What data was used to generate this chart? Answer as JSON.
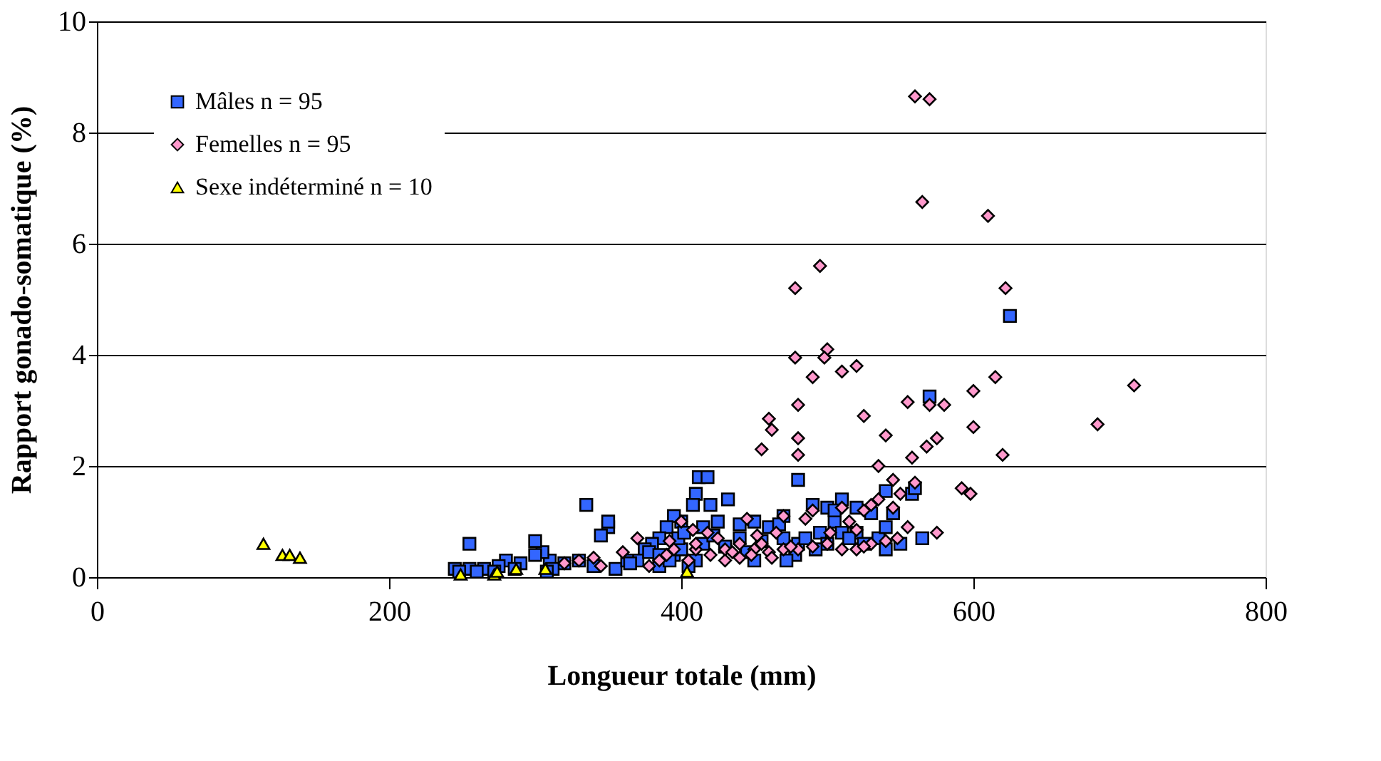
{
  "chart_data": {
    "type": "scatter",
    "xlabel": "Longueur totale (mm)",
    "ylabel": "Rapport gonado-somatique (%)",
    "xlim": [
      0,
      800
    ],
    "xticks": [
      0,
      200,
      400,
      600,
      800
    ],
    "ylim": [
      0,
      10
    ],
    "yticks": [
      0,
      2,
      4,
      6,
      8,
      10
    ],
    "grid": "y",
    "legend": "top left",
    "series": [
      {
        "name": "Mâles n = 95",
        "color": "#3366ff",
        "marker": "square",
        "x": [
          625,
          570,
          558,
          540,
          565,
          550,
          545,
          530,
          520,
          510,
          500,
          490,
          480,
          505,
          520,
          535,
          540,
          495,
          480,
          470,
          460,
          450,
          440,
          432,
          420,
          412,
          418,
          410,
          408,
          400,
          395,
          390,
          385,
          380,
          375,
          370,
          395,
          400,
          410,
          415,
          425,
          440,
          455,
          470,
          485,
          500,
          510,
          525,
          515,
          415,
          385,
          392,
          405,
          355,
          350,
          345,
          335,
          350,
          320,
          310,
          305,
          300,
          300,
          280,
          275,
          265,
          255,
          255,
          245,
          260,
          290,
          312,
          330,
          363,
          378,
          398,
          430,
          445,
          478,
          492,
          540,
          560,
          505,
          467,
          422,
          402,
          385,
          365,
          340,
          308,
          272,
          248,
          286,
          450,
          472
        ],
        "values": [
          4.7,
          3.25,
          1.5,
          1.55,
          0.7,
          0.6,
          1.15,
          1.15,
          1.25,
          1.4,
          1.25,
          1.3,
          1.75,
          1.0,
          0.8,
          0.7,
          0.9,
          0.8,
          0.6,
          1.1,
          0.9,
          1.0,
          0.95,
          1.4,
          1.3,
          1.8,
          1.8,
          1.5,
          1.3,
          1.0,
          1.1,
          0.9,
          0.7,
          0.6,
          0.5,
          0.3,
          0.4,
          0.5,
          0.3,
          0.6,
          1.0,
          0.7,
          0.65,
          0.7,
          0.7,
          0.6,
          0.8,
          0.6,
          0.7,
          0.9,
          0.2,
          0.3,
          0.2,
          0.15,
          0.9,
          0.75,
          1.3,
          1.0,
          0.25,
          0.3,
          0.45,
          0.65,
          0.4,
          0.3,
          0.2,
          0.15,
          0.6,
          0.15,
          0.15,
          0.1,
          0.25,
          0.15,
          0.3,
          0.3,
          0.45,
          0.7,
          0.55,
          0.45,
          0.4,
          0.5,
          0.5,
          1.6,
          1.2,
          0.95,
          0.75,
          0.8,
          0.4,
          0.25,
          0.2,
          0.1,
          0.1,
          0.1,
          0.15,
          0.3,
          0.3
        ]
      },
      {
        "name": "Femelles n = 95",
        "color": "#ff99cc",
        "marker": "diamond",
        "x": [
          560,
          570,
          565,
          610,
          495,
          478,
          622,
          710,
          685,
          620,
          615,
          600,
          500,
          498,
          478,
          520,
          510,
          490,
          580,
          555,
          570,
          480,
          525,
          460,
          462,
          540,
          480,
          600,
          575,
          568,
          455,
          480,
          558,
          535,
          545,
          560,
          598,
          592,
          550,
          510,
          525,
          575,
          490,
          515,
          470,
          445,
          400,
          408,
          418,
          425,
          440,
          370,
          360,
          390,
          385,
          410,
          430,
          450,
          460,
          470,
          440,
          435,
          455,
          480,
          500,
          520,
          530,
          540,
          520,
          475,
          330,
          340,
          320,
          345,
          395,
          405,
          420,
          430,
          448,
          462,
          490,
          510,
          525,
          548,
          555,
          502,
          465,
          410,
          378,
          392,
          452,
          485,
          535,
          530,
          545
        ],
        "values": [
          8.65,
          8.6,
          6.75,
          6.5,
          5.6,
          5.2,
          5.2,
          3.45,
          2.75,
          2.2,
          3.6,
          3.35,
          4.1,
          3.95,
          3.95,
          3.8,
          3.7,
          3.6,
          3.1,
          3.15,
          3.1,
          3.1,
          2.9,
          2.85,
          2.65,
          2.55,
          2.5,
          2.7,
          2.5,
          2.35,
          2.3,
          2.2,
          2.15,
          2.0,
          1.75,
          1.7,
          1.5,
          1.6,
          1.5,
          1.25,
          1.2,
          0.8,
          1.2,
          1.0,
          1.1,
          1.05,
          1.0,
          0.85,
          0.8,
          0.7,
          0.6,
          0.7,
          0.45,
          0.4,
          0.3,
          0.5,
          0.5,
          0.5,
          0.45,
          0.5,
          0.35,
          0.45,
          0.6,
          0.5,
          0.6,
          0.5,
          0.6,
          0.65,
          0.85,
          0.55,
          0.3,
          0.35,
          0.25,
          0.2,
          0.5,
          0.3,
          0.4,
          0.3,
          0.4,
          0.35,
          0.55,
          0.5,
          0.55,
          0.7,
          0.9,
          0.8,
          0.8,
          0.6,
          0.2,
          0.65,
          0.75,
          1.05,
          1.4,
          1.3,
          1.25
        ]
      },
      {
        "name": "Sexe indéterminé n = 10",
        "color": "#ffff00",
        "marker": "triangle",
        "x": [
          114,
          127,
          132,
          139,
          249,
          272,
          274,
          287,
          307,
          404
        ],
        "values": [
          0.6,
          0.4,
          0.4,
          0.35,
          0.05,
          0.05,
          0.1,
          0.15,
          0.15,
          0.1
        ]
      }
    ]
  }
}
